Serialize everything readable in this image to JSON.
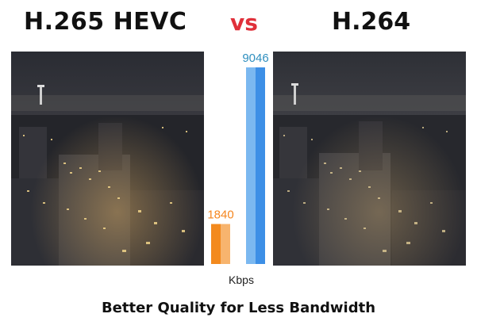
{
  "header": {
    "left_label": "H.265 HEVC",
    "vs_label": "vs",
    "right_label": "H.264"
  },
  "footer": {
    "tagline": "Better Quality for Less Bandwidth"
  },
  "colors": {
    "hevc": "#f5861f",
    "h264": "#3d8fe6",
    "vs": "#e0303a"
  },
  "chart_data": {
    "type": "bar",
    "categories": [
      "H.265 HEVC",
      "H.264"
    ],
    "values": [
      1840,
      9046
    ],
    "value_labels": [
      "1840",
      "9046"
    ],
    "xlabel": "Kbps",
    "ylim": [
      0,
      9046
    ],
    "grid": false
  }
}
